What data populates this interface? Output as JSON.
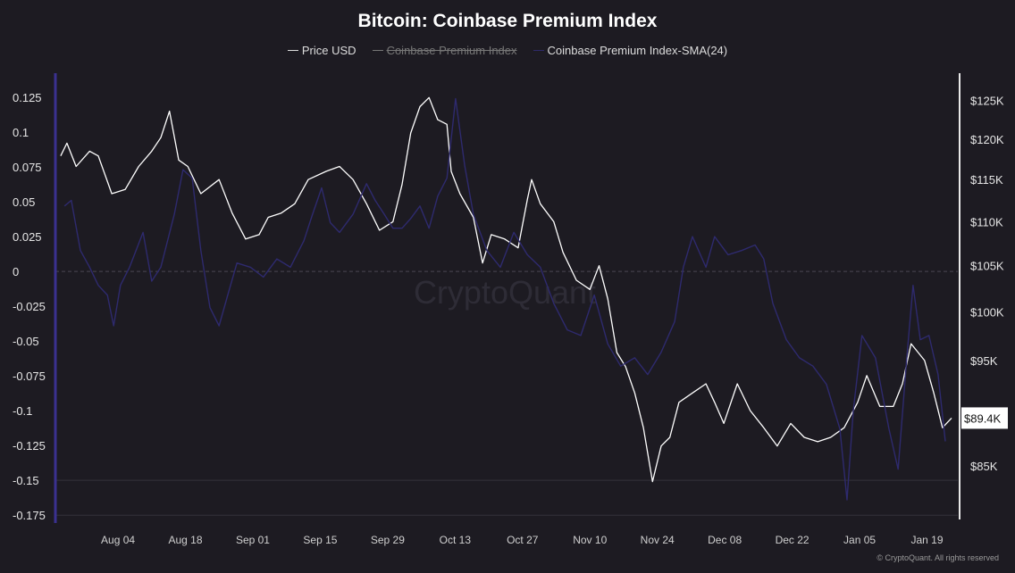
{
  "chart_data": {
    "type": "line",
    "title": "Bitcoin: Coinbase Premium Index",
    "x_unit": "days since 2025-07-22",
    "x_range": [
      0,
      187.4
    ],
    "x_ticks": [
      {
        "label": "Aug 04",
        "day": 13
      },
      {
        "label": "Aug 18",
        "day": 27
      },
      {
        "label": "Sep 01",
        "day": 41
      },
      {
        "label": "Sep 15",
        "day": 55
      },
      {
        "label": "Sep 29",
        "day": 69
      },
      {
        "label": "Oct 13",
        "day": 83
      },
      {
        "label": "Oct 27",
        "day": 97
      },
      {
        "label": "Nov 10",
        "day": 111
      },
      {
        "label": "Nov 24",
        "day": 125
      },
      {
        "label": "Dec 08",
        "day": 139
      },
      {
        "label": "Dec 22",
        "day": 153
      },
      {
        "label": "Jan 05",
        "day": 167
      },
      {
        "label": "Jan 19",
        "day": 181
      }
    ],
    "left_axis": {
      "range": [
        -0.18,
        0.134
      ],
      "ticks": [
        0.125,
        0.1,
        0.075,
        0.05,
        0.025,
        0,
        -0.025,
        -0.05,
        -0.075,
        -0.1,
        -0.125,
        -0.15,
        -0.175
      ],
      "tick_labels": [
        "0.125",
        "0.1",
        "0.075",
        "0.05",
        "0.025",
        "0",
        "-0.025",
        "-0.05",
        "-0.075",
        "-0.1",
        "-0.125",
        "-0.15",
        "-0.175"
      ]
    },
    "right_axis": {
      "scale": "log",
      "range_k": [
        80.1,
        127.1
      ],
      "ticks": [
        125,
        120,
        115,
        110,
        105,
        100,
        95,
        85
      ],
      "tick_labels": [
        "$125K",
        "$120K",
        "$115K",
        "$110K",
        "$105K",
        "$100K",
        "$95K",
        "$85K"
      ]
    },
    "current_price_label": "$89.4K",
    "current_price_k": 89.4,
    "legend": [
      {
        "name": "Price USD",
        "visible": true
      },
      {
        "name": "Coinbase Premium Index",
        "visible": false
      },
      {
        "name": "Coinbase Premium Index-SMA(24)",
        "visible": true
      }
    ],
    "series": [
      {
        "name": "Price USD",
        "axis": "right",
        "unit": "K USD",
        "color": "#ffffff",
        "x": [
          1.1,
          2.4,
          4.3,
          7.1,
          8.9,
          11.7,
          14.5,
          17.3,
          20,
          21.9,
          23.7,
          25.6,
          27.5,
          30.2,
          34,
          36.7,
          39.5,
          42.3,
          44.2,
          46.9,
          49.7,
          52.5,
          56.2,
          59,
          61.8,
          64.6,
          67.3,
          70.1,
          72,
          73.8,
          75.7,
          77.6,
          79.4,
          81.3,
          82.2,
          84,
          86.8,
          88.7,
          90.5,
          93.3,
          96.1,
          98,
          98.9,
          100.7,
          103.5,
          105.4,
          108.2,
          111,
          112.9,
          114.7,
          116.6,
          118.4,
          120.3,
          122.1,
          124,
          125.8,
          127.6,
          129.5,
          132.3,
          135.1,
          136.9,
          138.8,
          141.6,
          144.3,
          147.1,
          149.9,
          152.7,
          155.5,
          158.3,
          161,
          163.8,
          166.6,
          168.5,
          171.2,
          174,
          175.9,
          177.7,
          180.5,
          182.4,
          184.2,
          186.1
        ],
        "values": [
          117.9,
          119.5,
          116.6,
          118.5,
          117.9,
          113.3,
          113.8,
          116.6,
          118.5,
          120.2,
          123.6,
          117.4,
          116.6,
          113.3,
          115.0,
          111.0,
          108.0,
          108.5,
          110.5,
          111.0,
          112.1,
          115.0,
          116.0,
          116.6,
          115.0,
          112.1,
          109.0,
          110.0,
          114.4,
          120.8,
          124.2,
          125.4,
          122.5,
          121.9,
          116.0,
          113.3,
          110.5,
          105.3,
          108.5,
          108.0,
          107.0,
          112.6,
          115.0,
          112.1,
          110.0,
          106.5,
          103.4,
          102.4,
          105.0,
          101.4,
          95.8,
          94.4,
          91.8,
          88.5,
          83.6,
          86.8,
          87.6,
          90.9,
          91.8,
          92.7,
          90.9,
          88.9,
          92.7,
          90.1,
          88.5,
          86.8,
          88.9,
          87.6,
          87.2,
          87.6,
          88.5,
          90.9,
          93.5,
          90.5,
          90.5,
          92.7,
          96.7,
          95.0,
          91.8,
          88.5,
          89.4
        ]
      },
      {
        "name": "Coinbase Premium Index-SMA(24)",
        "axis": "left",
        "color": "#2e2a6e",
        "x": [
          1.9,
          3.3,
          5.2,
          7.1,
          8.9,
          10.8,
          12.1,
          13.5,
          15.4,
          18.2,
          20,
          21.9,
          24.7,
          26.5,
          28.4,
          30.2,
          32.1,
          34,
          35.8,
          37.7,
          40.5,
          43.2,
          46,
          48.8,
          51.6,
          53.4,
          55.3,
          57.1,
          59,
          61.8,
          64.6,
          66.4,
          68.3,
          70.1,
          72,
          73.8,
          75.7,
          77.6,
          79.4,
          81.3,
          83.1,
          85,
          86.8,
          89.6,
          92.4,
          95.2,
          98,
          100.7,
          103.5,
          106.3,
          109.1,
          111.9,
          114.7,
          117.4,
          120.3,
          123,
          125.8,
          128.6,
          130.4,
          132.3,
          135.1,
          136.9,
          139.7,
          142.5,
          145.3,
          147.1,
          149,
          151.8,
          154.5,
          157.3,
          160.1,
          162.9,
          164.4,
          165.7,
          167.5,
          170.3,
          173.1,
          175,
          176.8,
          178.1,
          179.6,
          181.4,
          183.3,
          184.8
        ],
        "values": [
          0.047,
          0.051,
          0.015,
          0.003,
          -0.01,
          -0.017,
          -0.039,
          -0.01,
          0.003,
          0.028,
          -0.007,
          0.003,
          0.041,
          0.073,
          0.067,
          0.015,
          -0.026,
          -0.039,
          -0.017,
          0.006,
          0.003,
          -0.004,
          0.009,
          0.003,
          0.022,
          0.041,
          0.06,
          0.035,
          0.028,
          0.041,
          0.063,
          0.051,
          0.041,
          0.031,
          0.031,
          0.038,
          0.047,
          0.031,
          0.054,
          0.067,
          0.124,
          0.076,
          0.041,
          0.015,
          0.003,
          0.028,
          0.012,
          0.003,
          -0.023,
          -0.042,
          -0.046,
          -0.017,
          -0.052,
          -0.068,
          -0.062,
          -0.074,
          -0.058,
          -0.036,
          0.003,
          0.025,
          0.003,
          0.025,
          0.012,
          0.015,
          0.019,
          0.009,
          -0.023,
          -0.049,
          -0.062,
          -0.068,
          -0.081,
          -0.113,
          -0.164,
          -0.1,
          -0.046,
          -0.062,
          -0.113,
          -0.142,
          -0.062,
          -0.01,
          -0.049,
          -0.046,
          -0.074,
          -0.122
        ]
      }
    ],
    "grid": true,
    "legend_position": "top-center"
  },
  "watermark": "CryptoQuant",
  "copyright": "© CryptoQuant. All rights reserved"
}
